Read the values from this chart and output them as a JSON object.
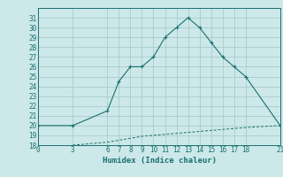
{
  "xlabel": "Humidex (Indice chaleur)",
  "bg_color": "#cce8e8",
  "grid_color": "#aacccc",
  "line_color": "#1a7070",
  "main_x": [
    0,
    3,
    6,
    7,
    8,
    9,
    10,
    11,
    12,
    13,
    14,
    15,
    16,
    17,
    18,
    21
  ],
  "main_y": [
    20,
    20,
    21.5,
    24.5,
    26,
    26,
    27,
    29,
    30,
    31,
    30,
    28.5,
    27,
    26,
    25,
    20
  ],
  "lower_x": [
    3,
    6,
    7,
    8,
    9,
    10,
    11,
    12,
    13,
    14,
    15,
    16,
    17,
    18,
    21
  ],
  "lower_y": [
    18,
    18.3,
    18.5,
    18.7,
    18.9,
    19.0,
    19.1,
    19.2,
    19.3,
    19.4,
    19.5,
    19.6,
    19.7,
    19.8,
    20
  ],
  "xlim": [
    0,
    21
  ],
  "ylim": [
    18,
    32
  ],
  "yticks": [
    18,
    19,
    20,
    21,
    22,
    23,
    24,
    25,
    26,
    27,
    28,
    29,
    30,
    31
  ],
  "xticks": [
    0,
    3,
    6,
    7,
    8,
    9,
    10,
    11,
    12,
    13,
    14,
    15,
    16,
    17,
    18,
    21
  ],
  "fontsize_label": 6.5,
  "fontsize_tick": 5.5
}
